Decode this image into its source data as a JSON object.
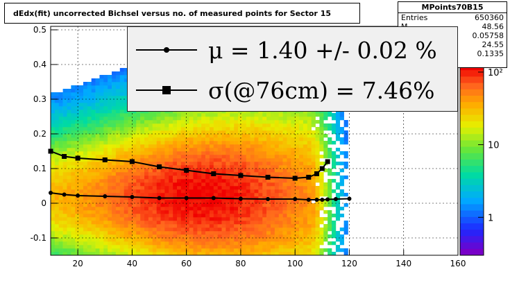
{
  "chart_data": {
    "type": "heatmap",
    "title": "dEdx(fit) uncorrected Bichsel versus no. of measured points for Sector 15",
    "x_ticks": [
      "20",
      "40",
      "60",
      "80",
      "100",
      "120",
      "140",
      "160"
    ],
    "y_ticks": [
      "0.5",
      "0.4",
      "0.3",
      "0.2",
      "0.1",
      "0",
      "-0.1"
    ],
    "xlim": [
      10,
      160
    ],
    "ylim": [
      -0.15,
      0.51
    ],
    "z_scale": "log",
    "z_ticks": [
      "10²",
      "10",
      "1"
    ],
    "z_tick_values": [
      100,
      10,
      1
    ],
    "grid": true,
    "stats": {
      "name": "MPoints70B15",
      "rows": [
        {
          "label": "Entries",
          "value": "650360"
        },
        {
          "label": "M",
          "value": "48.56"
        },
        {
          "label": "",
          "value": "0.05758"
        },
        {
          "label": "",
          "value": "24.55"
        },
        {
          "label": "",
          "value": "0.1335"
        }
      ]
    },
    "legend": [
      {
        "label": "μ  =  1.40 +/-  0.02 %",
        "marker": "circle"
      },
      {
        "label": "σ(@76cm) =  7.46%",
        "marker": "square"
      }
    ],
    "series": [
      {
        "marker": "circle",
        "x": [
          10,
          15,
          20,
          30,
          40,
          50,
          60,
          70,
          80,
          90,
          100,
          105,
          108,
          110,
          112,
          115,
          120
        ],
        "y": [
          0.03,
          0.025,
          0.022,
          0.02,
          0.018,
          0.015,
          0.015,
          0.015,
          0.013,
          0.012,
          0.012,
          0.01,
          0.01,
          0.01,
          0.011,
          0.012,
          0.013
        ]
      },
      {
        "marker": "square",
        "x": [
          10,
          15,
          20,
          30,
          40,
          50,
          60,
          70,
          80,
          90,
          100,
          105,
          108,
          110,
          112
        ],
        "y": [
          0.15,
          0.135,
          0.13,
          0.125,
          0.12,
          0.105,
          0.095,
          0.085,
          0.08,
          0.075,
          0.072,
          0.075,
          0.085,
          0.1,
          0.12
        ]
      }
    ]
  }
}
